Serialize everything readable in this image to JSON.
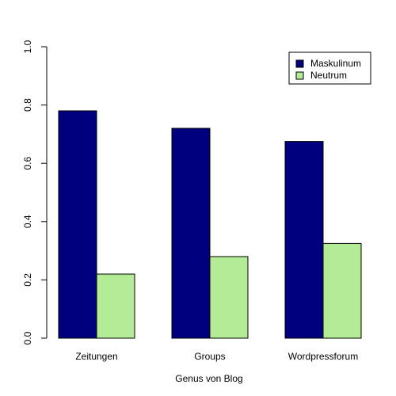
{
  "chart_data": {
    "type": "bar",
    "title": "",
    "xlabel": "Genus von Blog",
    "ylabel": "",
    "categories": [
      "Zeitungen",
      "Groups",
      "Wordpressforum"
    ],
    "series": [
      {
        "name": "Maskulinum",
        "values": [
          0.78,
          0.72,
          0.675
        ],
        "color": "#00007f"
      },
      {
        "name": "Neutrum",
        "values": [
          0.22,
          0.28,
          0.325
        ],
        "color": "#b4eb96"
      }
    ],
    "ylim": [
      0,
      1
    ],
    "yticks": [
      "0.0",
      "0.2",
      "0.4",
      "0.6",
      "0.8",
      "1.0"
    ],
    "grid": false,
    "legend_position": "top-right"
  }
}
